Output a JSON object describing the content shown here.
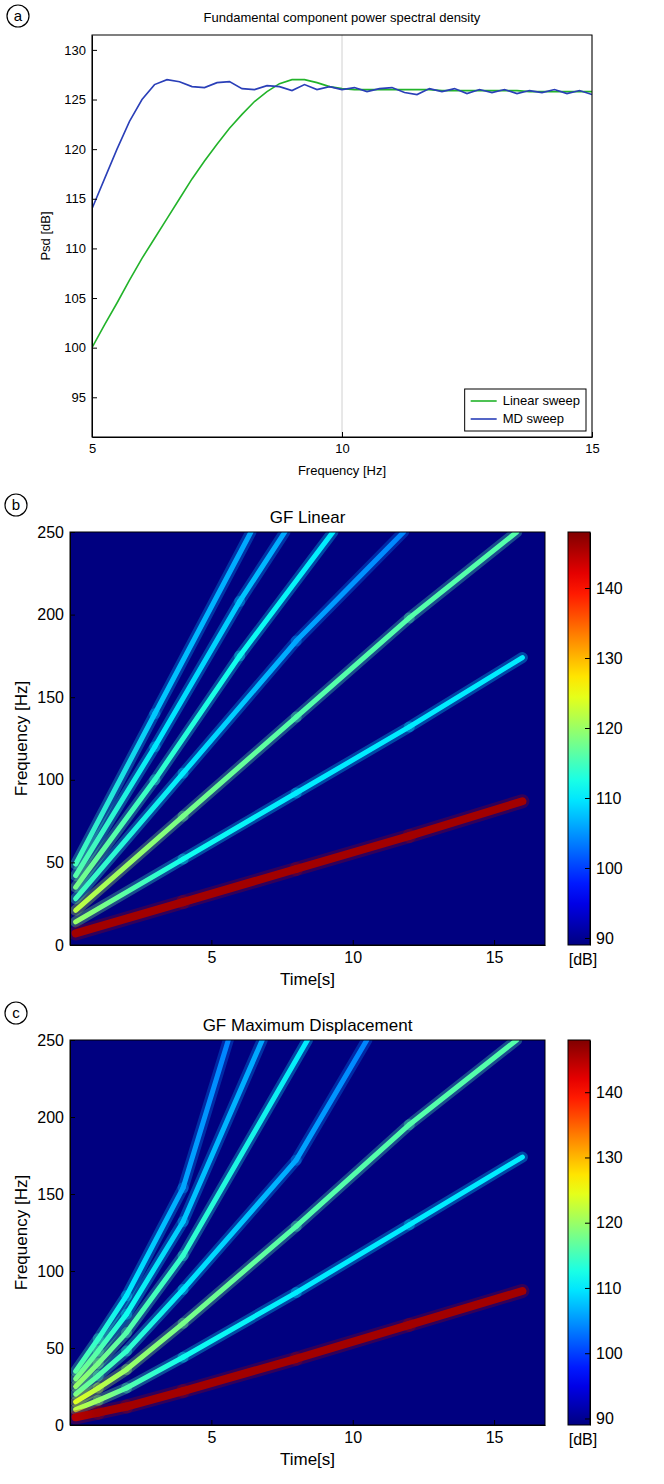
{
  "chart_data": [
    {
      "type": "line",
      "panel": "a",
      "title": "Fundamental component power spectral density",
      "x_label": "Frequency [Hz]",
      "y_label": "Psd [dB]",
      "x": [
        5,
        5.25,
        5.5,
        5.75,
        6,
        6.25,
        6.5,
        6.75,
        7,
        7.25,
        7.5,
        7.75,
        8,
        8.25,
        8.5,
        8.75,
        9,
        9.25,
        9.5,
        9.75,
        10,
        10.25,
        10.5,
        10.75,
        11,
        11.25,
        11.5,
        11.75,
        12,
        12.25,
        12.5,
        12.75,
        13,
        13.25,
        13.5,
        13.75,
        14,
        14.25,
        14.5,
        14.75,
        15
      ],
      "series": [
        {
          "name": "Linear sweep",
          "color": "#22b32a",
          "values": [
            100,
            102.3,
            104.5,
            106.8,
            109,
            111,
            113,
            115,
            117,
            118.8,
            120.5,
            122.1,
            123.5,
            124.8,
            125.8,
            126.6,
            127,
            127,
            126.7,
            126.3,
            126.1,
            126,
            126,
            126,
            126,
            126,
            126,
            126,
            125.9,
            125.9,
            125.9,
            125.9,
            125.9,
            125.9,
            125.9,
            125.8,
            125.8,
            125.8,
            125.8,
            125.8,
            125.8
          ]
        },
        {
          "name": "MD sweep",
          "color": "#2a3fb8",
          "values": [
            114,
            117,
            120,
            122.8,
            125,
            126.5,
            127,
            126.8,
            126.3,
            126.2,
            126.7,
            126.8,
            126.1,
            126,
            126.4,
            126.3,
            125.9,
            126.5,
            126,
            126.3,
            126,
            126.2,
            125.8,
            126.1,
            126.2,
            125.7,
            125.5,
            126.1,
            125.8,
            126.1,
            125.6,
            126,
            125.7,
            126,
            125.6,
            125.9,
            125.7,
            126,
            125.6,
            125.9,
            125.5
          ]
        }
      ],
      "xlim": [
        5,
        15
      ],
      "xticks": [
        5,
        10,
        15
      ],
      "ylim": [
        91,
        131.5
      ],
      "yticks": [
        95,
        100,
        105,
        110,
        115,
        120,
        125,
        130
      ],
      "grid": "x",
      "legend": "lower right"
    },
    {
      "type": "spectrogram",
      "panel": "b",
      "title": "GF Linear",
      "x_label": "Time[s]",
      "y_label": "Frequency [Hz]",
      "xlim": [
        0,
        16.8
      ],
      "xticks": [
        5,
        10,
        15
      ],
      "ylim": [
        0,
        250
      ],
      "yticks": [
        0,
        50,
        100,
        150,
        200,
        250
      ],
      "series": [
        {
          "x": [
            0.2,
            4,
            8,
            12,
            16
          ],
          "y": [
            7,
            26,
            46,
            66,
            87
          ],
          "values": [
            146,
            146,
            146,
            146,
            146
          ]
        },
        {
          "x": [
            0.2,
            4,
            8,
            12,
            16
          ],
          "y": [
            14,
            52,
            92,
            132,
            174
          ],
          "values": [
            120,
            112,
            110,
            110,
            110
          ]
        },
        {
          "x": [
            0.2,
            4,
            8,
            12,
            15.8
          ],
          "y": [
            21,
            78,
            138,
            198,
            250
          ],
          "values": [
            122,
            118,
            116,
            116,
            116
          ]
        },
        {
          "x": [
            0.2,
            4,
            8,
            11.8
          ],
          "y": [
            28,
            104,
            184,
            250
          ],
          "values": [
            115,
            110,
            106,
            104
          ]
        },
        {
          "x": [
            0.2,
            3,
            6,
            9.3
          ],
          "y": [
            35,
            100,
            175,
            250
          ],
          "values": [
            118,
            114,
            112,
            110
          ]
        },
        {
          "x": [
            0.2,
            3,
            6,
            7.6
          ],
          "y": [
            42,
            120,
            208,
            250
          ],
          "values": [
            116,
            110,
            108,
            106
          ]
        },
        {
          "x": [
            0.2,
            3,
            6.4
          ],
          "y": [
            49,
            140,
            250
          ],
          "values": [
            115,
            108,
            106
          ]
        }
      ],
      "colorbar": {
        "range": [
          89,
          148
        ],
        "ticks": [
          90,
          100,
          110,
          120,
          130,
          140
        ],
        "label": "[dB]"
      }
    },
    {
      "type": "spectrogram",
      "panel": "c",
      "title": "GF Maximum Displacement",
      "x_label": "Time[s]",
      "y_label": "Frequency [Hz]",
      "xlim": [
        0,
        16.8
      ],
      "xticks": [
        5,
        10,
        15
      ],
      "ylim": [
        0,
        250
      ],
      "yticks": [
        0,
        50,
        100,
        150,
        200,
        250
      ],
      "series": [
        {
          "x": [
            0.2,
            1,
            2,
            4,
            8,
            12,
            16
          ],
          "y": [
            5,
            8,
            12,
            22,
            43,
            65,
            87
          ],
          "values": [
            145,
            146,
            146,
            146,
            146,
            146,
            146
          ]
        },
        {
          "x": [
            0.2,
            1,
            2,
            4,
            8,
            12,
            16
          ],
          "y": [
            10,
            16,
            24,
            44,
            86,
            130,
            174
          ],
          "values": [
            122,
            120,
            116,
            112,
            110,
            110,
            110
          ]
        },
        {
          "x": [
            0.2,
            1,
            2,
            4,
            8,
            12,
            15.8
          ],
          "y": [
            15,
            24,
            36,
            66,
            129,
            195,
            250
          ],
          "values": [
            124,
            122,
            120,
            118,
            116,
            116,
            116
          ]
        },
        {
          "x": [
            0.2,
            1,
            2,
            4,
            8,
            10.5
          ],
          "y": [
            20,
            32,
            48,
            88,
            172,
            250
          ],
          "values": [
            118,
            116,
            114,
            110,
            106,
            104
          ]
        },
        {
          "x": [
            0.2,
            1,
            2,
            4,
            8.4
          ],
          "y": [
            25,
            40,
            60,
            110,
            250
          ],
          "values": [
            120,
            118,
            116,
            114,
            110
          ]
        },
        {
          "x": [
            0.2,
            1,
            2,
            4,
            6.8
          ],
          "y": [
            30,
            48,
            72,
            132,
            250
          ],
          "values": [
            118,
            116,
            112,
            108,
            106
          ]
        },
        {
          "x": [
            0.2,
            1,
            2,
            4,
            5.6
          ],
          "y": [
            35,
            56,
            84,
            154,
            250
          ],
          "values": [
            116,
            114,
            110,
            106,
            104
          ]
        }
      ],
      "colorbar": {
        "range": [
          89,
          148
        ],
        "ticks": [
          90,
          100,
          110,
          120,
          130,
          140
        ],
        "label": "[dB]"
      }
    }
  ]
}
